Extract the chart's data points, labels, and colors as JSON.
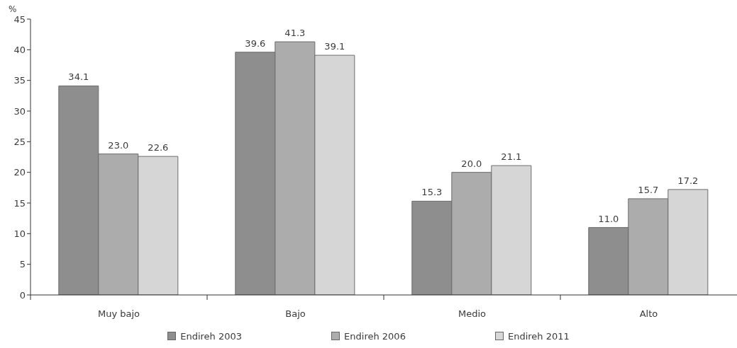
{
  "chart_data": {
    "type": "bar",
    "ylabel": "%",
    "categories": [
      "Muy bajo",
      "Bajo",
      "Medio",
      "Alto"
    ],
    "series": [
      {
        "name": "Endireh 2003",
        "color": "#8e8e8e",
        "values": [
          34.1,
          39.6,
          15.3,
          11.0
        ],
        "value_labels": [
          "34.1",
          "39.6",
          "15.3",
          "11.0"
        ]
      },
      {
        "name": "Endireh 2006",
        "color": "#acacac",
        "values": [
          23.0,
          41.3,
          20.0,
          15.7
        ],
        "value_labels": [
          "23.0",
          "41.3",
          "20.0",
          "15.7"
        ]
      },
      {
        "name": "Endireh 2011",
        "color": "#d6d6d6",
        "values": [
          22.6,
          39.1,
          21.1,
          17.2
        ],
        "value_labels": [
          "22.6",
          "39.1",
          "21.1",
          "17.2"
        ]
      }
    ],
    "ylim": [
      0,
      45
    ],
    "yticks": [
      0,
      5,
      10,
      15,
      20,
      25,
      30,
      35,
      40,
      45
    ],
    "grid": false,
    "legend": "bottom"
  }
}
